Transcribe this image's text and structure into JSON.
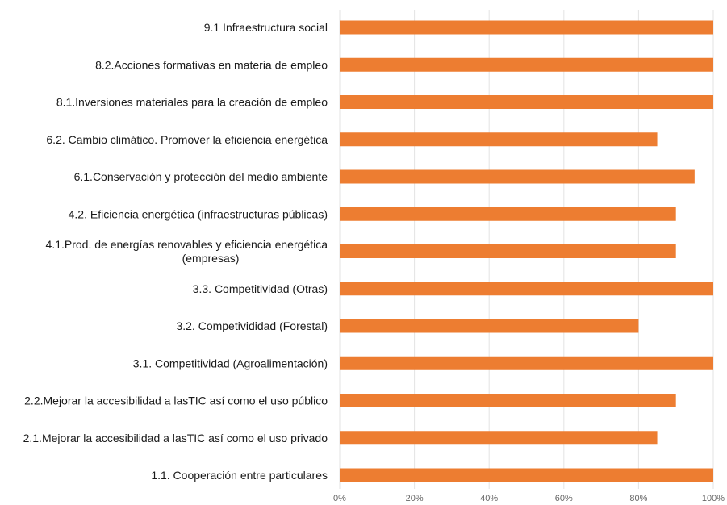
{
  "chart_data": {
    "type": "bar",
    "orientation": "horizontal",
    "title": "",
    "xlabel": "",
    "ylabel": "",
    "xlim": [
      0,
      100
    ],
    "grid": true,
    "bar_color": "#ED7D31",
    "categories": [
      [
        "9.1 Infraestructura social"
      ],
      [
        "8.2.Acciones formativas en materia de empleo"
      ],
      [
        "8.1.Inversiones materiales para la creación de empleo"
      ],
      [
        "6.2. Cambio climático. Promover la eficiencia energética"
      ],
      [
        "6.1.Conservación y protección del medio ambiente"
      ],
      [
        "4.2. Eficiencia energética (infraestructuras públicas)"
      ],
      [
        "4.1.Prod. de energías renovables y eficiencia energética",
        "(empresas)"
      ],
      [
        "3.3. Competitividad (Otras)"
      ],
      [
        "3.2. Competivididad (Forestal)"
      ],
      [
        "3.1. Competitividad (Agroalimentación)"
      ],
      [
        "2.2.Mejorar la accesibilidad a lasTIC así como el uso  público"
      ],
      [
        "2.1.Mejorar la accesibilidad a lasTIC así como el uso privado"
      ],
      [
        "1.1. Cooperación entre particulares"
      ]
    ],
    "values": [
      100,
      100,
      100,
      85,
      95,
      90,
      90,
      100,
      80,
      100,
      90,
      85,
      100
    ],
    "tick_values": [
      0,
      20,
      40,
      60,
      80,
      100
    ],
    "tick_labels": [
      "0%",
      "20%",
      "40%",
      "60%",
      "80%",
      "100%"
    ]
  }
}
